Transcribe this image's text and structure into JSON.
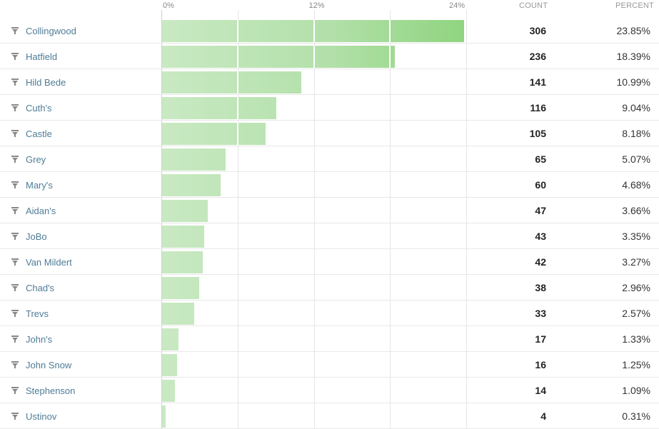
{
  "chart_data": {
    "type": "bar",
    "orientation": "horizontal",
    "x_ticks": [
      "0%",
      "12%",
      "24%"
    ],
    "x_tick_values": [
      0,
      12,
      24
    ],
    "xlim": [
      0,
      24
    ],
    "columns": {
      "count": "COUNT",
      "percent": "PERCENT"
    },
    "rows": [
      {
        "label": "Collingwood",
        "count": "306",
        "percent": "23.85%",
        "value": 23.85
      },
      {
        "label": "Hatfield",
        "count": "236",
        "percent": "18.39%",
        "value": 18.39
      },
      {
        "label": "Hild Bede",
        "count": "141",
        "percent": "10.99%",
        "value": 10.99
      },
      {
        "label": "Cuth's",
        "count": "116",
        "percent": "9.04%",
        "value": 9.04
      },
      {
        "label": "Castle",
        "count": "105",
        "percent": "8.18%",
        "value": 8.18
      },
      {
        "label": "Grey",
        "count": "65",
        "percent": "5.07%",
        "value": 5.07
      },
      {
        "label": "Mary's",
        "count": "60",
        "percent": "4.68%",
        "value": 4.68
      },
      {
        "label": "Aidan's",
        "count": "47",
        "percent": "3.66%",
        "value": 3.66
      },
      {
        "label": "JoBo",
        "count": "43",
        "percent": "3.35%",
        "value": 3.35
      },
      {
        "label": "Van Mildert",
        "count": "42",
        "percent": "3.27%",
        "value": 3.27
      },
      {
        "label": "Chad's",
        "count": "38",
        "percent": "2.96%",
        "value": 2.96
      },
      {
        "label": "Trevs",
        "count": "33",
        "percent": "2.57%",
        "value": 2.57
      },
      {
        "label": "John's",
        "count": "17",
        "percent": "1.33%",
        "value": 1.33
      },
      {
        "label": "John Snow",
        "count": "16",
        "percent": "1.25%",
        "value": 1.25
      },
      {
        "label": "Stephenson",
        "count": "14",
        "percent": "1.09%",
        "value": 1.09
      },
      {
        "label": "Ustinov",
        "count": "4",
        "percent": "0.31%",
        "value": 0.31
      }
    ],
    "bar_color": "#b2e0a9",
    "grid": true
  },
  "icons": {
    "row_filter": "filter-icon"
  }
}
